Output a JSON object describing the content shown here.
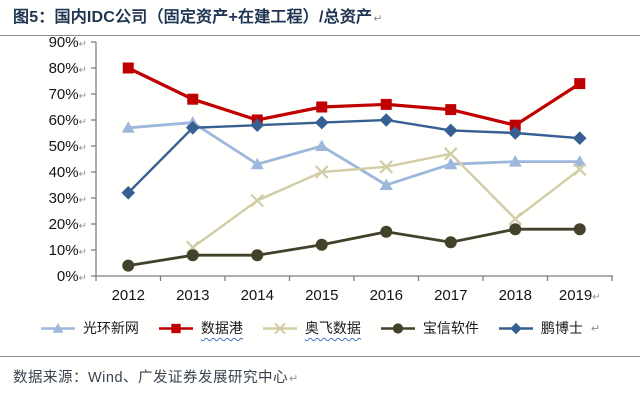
{
  "title": {
    "text": "图5：国内IDC公司（固定资产+在建工程）/总资产"
  },
  "marks": {
    "return_mark": "↵",
    "squiggle_color": "#4472C4"
  },
  "footer": {
    "text": "数据来源：Wind、广发证券发展研究中心"
  },
  "chart_data": {
    "type": "line",
    "title": "图5：国内IDC公司（固定资产+在建工程）/总资产",
    "categories": [
      "2012",
      "2013",
      "2014",
      "2015",
      "2016",
      "2017",
      "2018",
      "2019"
    ],
    "y_ticks": [
      "0%",
      "10%",
      "20%",
      "30%",
      "40%",
      "50%",
      "60%",
      "70%",
      "80%",
      "90%"
    ],
    "ylim": [
      0,
      90
    ],
    "unit": "%",
    "grid": false,
    "legend_position": "bottom",
    "axis_color": "#7f7f7f",
    "series": [
      {
        "name": "光环新网",
        "marker": "triangle",
        "color": "#9db8dc",
        "line_width": 2.8,
        "values": [
          57,
          59,
          43,
          50,
          35,
          43,
          44,
          44
        ],
        "squiggle": false
      },
      {
        "name": "数据港",
        "marker": "square",
        "color": "#c00000",
        "line_width": 3.2,
        "values": [
          80,
          68,
          60,
          65,
          66,
          64,
          58,
          74
        ],
        "squiggle": true
      },
      {
        "name": "奥飞数据",
        "marker": "x",
        "color": "#d2cda6",
        "line_width": 2.4,
        "values": [
          null,
          11,
          29,
          40,
          42,
          47,
          22,
          41
        ],
        "squiggle": true
      },
      {
        "name": "宝信软件",
        "marker": "circle",
        "color": "#43412a",
        "line_width": 2.8,
        "values": [
          4,
          8,
          8,
          12,
          17,
          13,
          18,
          18
        ],
        "squiggle": false
      },
      {
        "name": "鹏博士",
        "marker": "diamond",
        "color": "#366092",
        "line_width": 2.4,
        "values": [
          32,
          57,
          58,
          59,
          60,
          56,
          55,
          53
        ],
        "squiggle": false
      }
    ]
  }
}
